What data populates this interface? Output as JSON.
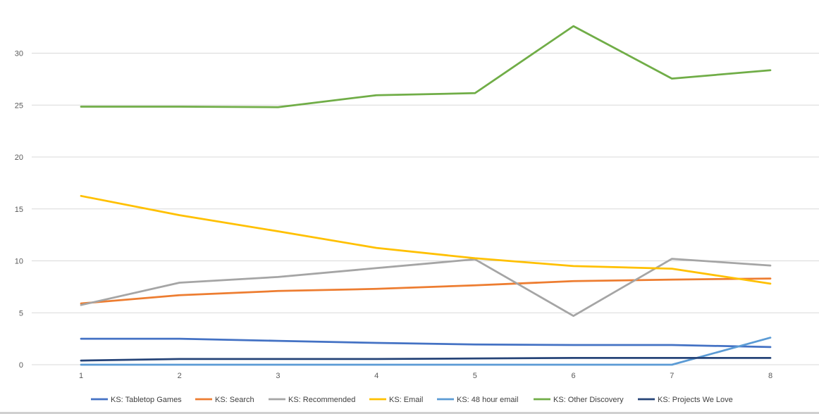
{
  "chart_data": {
    "type": "line",
    "title": "",
    "xlabel": "",
    "ylabel": "",
    "categories": [
      "1",
      "2",
      "3",
      "4",
      "5",
      "6",
      "7",
      "8"
    ],
    "ylim": [
      0,
      33
    ],
    "yticks": [
      0,
      5,
      10,
      15,
      20,
      25,
      30
    ],
    "grid": true,
    "legend_position": "bottom",
    "series": [
      {
        "name": "KS: Tabletop Games",
        "color": "#4472c4",
        "values": [
          2.5,
          2.5,
          2.3,
          2.1,
          1.95,
          1.9,
          1.9,
          1.7
        ]
      },
      {
        "name": "KS: Search",
        "color": "#ed7d31",
        "values": [
          5.9,
          6.7,
          7.1,
          7.3,
          7.65,
          8.05,
          8.2,
          8.3
        ]
      },
      {
        "name": "KS: Recommended",
        "color": "#a5a5a5",
        "values": [
          5.75,
          7.9,
          8.45,
          9.3,
          10.15,
          4.7,
          10.2,
          9.55
        ]
      },
      {
        "name": "KS: Email",
        "color": "#ffc000",
        "values": [
          16.25,
          14.4,
          12.85,
          11.25,
          10.25,
          9.5,
          9.25,
          7.8
        ]
      },
      {
        "name": "KS: 48 hour email",
        "color": "#5b9bd5",
        "values": [
          0.0,
          0.0,
          0.0,
          0.0,
          0.0,
          0.0,
          0.0,
          2.6
        ]
      },
      {
        "name": "KS: Other Discovery",
        "color": "#70ad47",
        "values": [
          24.85,
          24.85,
          24.8,
          25.95,
          26.15,
          32.6,
          27.55,
          28.35
        ]
      },
      {
        "name": "KS: Projects We Love",
        "color": "#264478",
        "values": [
          0.4,
          0.55,
          0.55,
          0.55,
          0.6,
          0.65,
          0.65,
          0.65
        ]
      }
    ]
  }
}
